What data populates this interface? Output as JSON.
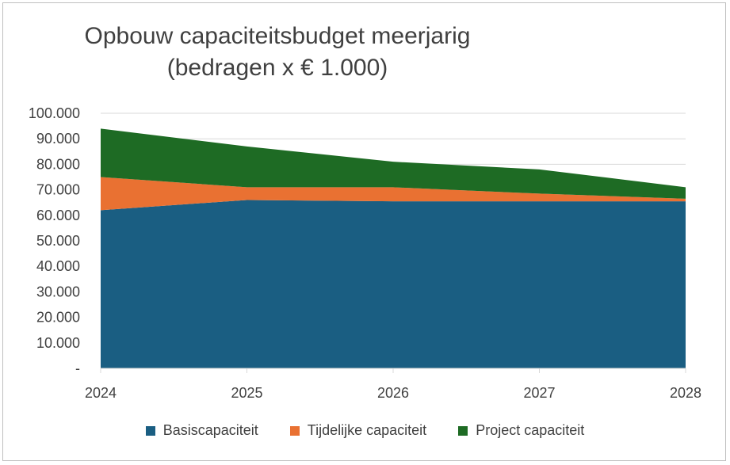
{
  "chart_data": {
    "type": "area",
    "stacked": true,
    "title_line1": "Opbouw capaciteitsbudget meerjarig",
    "title_line2": "(bedragen x € 1.000)",
    "categories": [
      "2024",
      "2025",
      "2026",
      "2027",
      "2028"
    ],
    "y_ticks": [
      "-",
      "10.000",
      "20.000",
      "30.000",
      "40.000",
      "50.000",
      "60.000",
      "70.000",
      "80.000",
      "90.000",
      "100.000"
    ],
    "ylim": [
      0,
      100000
    ],
    "grid": true,
    "legend_position": "bottom",
    "series": [
      {
        "name": "Basiscapaciteit",
        "color": "#1a5e82",
        "values": [
          62000,
          66000,
          65500,
          65500,
          65500
        ]
      },
      {
        "name": "Tijdelijke capaciteit",
        "color": "#e97132",
        "values": [
          13000,
          5000,
          5500,
          3000,
          1000
        ]
      },
      {
        "name": "Project capaciteit",
        "color": "#1e6b24",
        "values": [
          19000,
          16000,
          10000,
          9500,
          4500
        ]
      }
    ]
  }
}
